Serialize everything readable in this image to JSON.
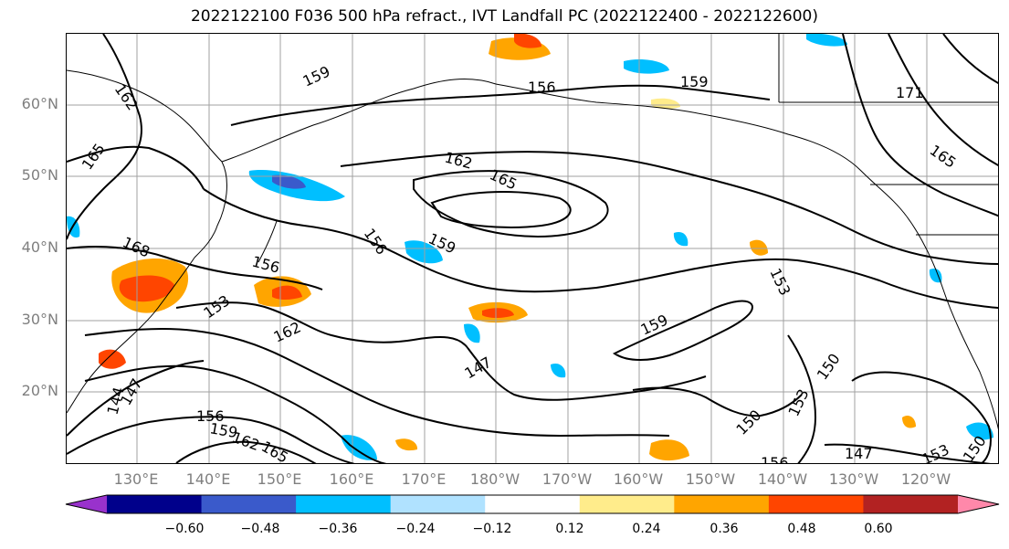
{
  "title": "2022122100 F036 500 hPa refract., IVT Landfall PC (2022122400 - 2022122600)",
  "lat_labels": [
    "60°N",
    "50°N",
    "40°N",
    "30°N",
    "20°N"
  ],
  "lon_labels": [
    "130°E",
    "140°E",
    "150°E",
    "160°E",
    "170°E",
    "180°W",
    "170°W",
    "160°W",
    "150°W",
    "140°W",
    "130°W",
    "120°W"
  ],
  "contour_labels": [
    "162",
    "159",
    "156",
    "159",
    "171",
    "165",
    "165",
    "162",
    "165",
    "159",
    "156",
    "168",
    "156",
    "153",
    "162",
    "147",
    "159",
    "153",
    "150",
    "153",
    "150",
    "147",
    "153",
    "150",
    "144",
    "147",
    "156",
    "159",
    "162",
    "165",
    "156"
  ],
  "colorbar": {
    "colors": [
      "#9932cc",
      "#00008b",
      "#3a5acb",
      "#00bfff",
      "#b0e2ff",
      "#ffffff",
      "#ffec8b",
      "#ffa500",
      "#ff4500",
      "#b22222",
      "#ff88aa"
    ],
    "tick_labels": [
      "−0.60",
      "−0.48",
      "−0.36",
      "−0.24",
      "−0.12",
      "0.12",
      "0.24",
      "0.36",
      "0.48",
      "0.60"
    ]
  }
}
